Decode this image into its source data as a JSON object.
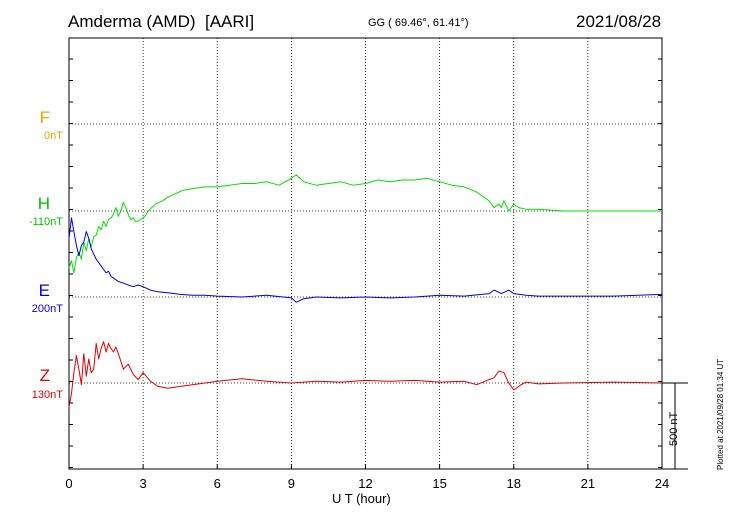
{
  "header": {
    "station": "Amderma (AMD)",
    "institute": "[AARI]",
    "coords": "GG ( 69.46°,  61.41°)",
    "date": "2021/08/28"
  },
  "footer": {
    "plotted": "Plotted at 2021/09/28 01:34 UT",
    "scale_label": "500 nT"
  },
  "chart_data": {
    "type": "line",
    "xlabel": "U T (hour)",
    "xlim": [
      0,
      24
    ],
    "xticks": [
      0,
      3,
      6,
      9,
      12,
      15,
      18,
      21,
      24
    ],
    "scale_nT": 500,
    "grid": true,
    "series": [
      {
        "name": "F",
        "baseline_label": "0nT",
        "color": "#f0a000",
        "values": []
      },
      {
        "name": "H",
        "baseline_label": "-110nT",
        "color": "#00e000",
        "x": [
          0,
          0.1,
          0.2,
          0.3,
          0.4,
          0.5,
          0.6,
          0.7,
          0.8,
          0.9,
          1.0,
          1.1,
          1.2,
          1.3,
          1.4,
          1.5,
          1.6,
          1.7,
          1.8,
          1.9,
          2.0,
          2.1,
          2.2,
          2.3,
          2.4,
          2.5,
          2.6,
          2.7,
          2.8,
          2.9,
          3.0,
          3.1,
          3.2,
          3.5,
          3.8,
          4.0,
          4.3,
          4.6,
          5.0,
          5.5,
          6.0,
          6.5,
          7.0,
          7.5,
          8.0,
          8.5,
          9.0,
          9.2,
          9.5,
          10.0,
          10.5,
          11.0,
          11.5,
          12.0,
          12.5,
          13.0,
          13.5,
          14.0,
          14.5,
          15.0,
          15.5,
          16.0,
          16.5,
          17.0,
          17.2,
          17.4,
          17.5,
          17.6,
          17.8,
          18.0,
          18.2,
          18.5,
          19.0,
          19.5,
          20.0,
          21.0,
          22.0,
          23.0,
          24.0
        ],
        "y": [
          -330,
          -290,
          -360,
          -270,
          -240,
          -280,
          -180,
          -230,
          -160,
          -210,
          -150,
          -140,
          -90,
          -110,
          -60,
          -90,
          -50,
          -40,
          -20,
          20,
          -30,
          0,
          50,
          20,
          -20,
          -50,
          -40,
          -60,
          -60,
          -50,
          -40,
          -25,
          0,
          40,
          60,
          80,
          100,
          120,
          130,
          140,
          140,
          150,
          160,
          160,
          170,
          150,
          190,
          210,
          170,
          150,
          160,
          170,
          150,
          160,
          180,
          170,
          180,
          180,
          190,
          170,
          150,
          140,
          110,
          60,
          20,
          40,
          20,
          60,
          0,
          40,
          20,
          10,
          10,
          5,
          0,
          0,
          0,
          0,
          0
        ]
      },
      {
        "name": "E",
        "baseline_label": "200nT",
        "color": "#0000e0",
        "x": [
          0,
          0.1,
          0.2,
          0.3,
          0.4,
          0.5,
          0.6,
          0.7,
          0.8,
          0.9,
          1.0,
          1.1,
          1.2,
          1.3,
          1.4,
          1.5,
          1.6,
          1.7,
          1.8,
          1.9,
          2.0,
          2.2,
          2.4,
          2.6,
          2.8,
          3.0,
          3.3,
          3.6,
          4.0,
          4.5,
          5.0,
          5.5,
          6.0,
          7.0,
          8.0,
          9.0,
          9.2,
          9.5,
          10.0,
          11.0,
          12.0,
          13.0,
          14.0,
          15.0,
          16.0,
          17.0,
          17.2,
          17.5,
          17.8,
          18.0,
          18.5,
          19.0,
          20.0,
          21.0,
          22.0,
          23.0,
          24.0
        ],
        "y": [
          340,
          460,
          380,
          300,
          240,
          300,
          320,
          380,
          340,
          280,
          250,
          220,
          200,
          180,
          160,
          140,
          150,
          120,
          110,
          100,
          90,
          80,
          70,
          60,
          70,
          60,
          40,
          30,
          25,
          15,
          10,
          10,
          5,
          0,
          10,
          -5,
          -30,
          -10,
          0,
          -5,
          0,
          -5,
          0,
          10,
          5,
          20,
          40,
          20,
          40,
          20,
          10,
          5,
          5,
          5,
          5,
          10,
          15
        ]
      },
      {
        "name": "Z",
        "baseline_label": "130nT",
        "color": "#e00000",
        "x": [
          0,
          0.1,
          0.2,
          0.3,
          0.4,
          0.5,
          0.6,
          0.7,
          0.8,
          0.9,
          1.0,
          1.1,
          1.2,
          1.3,
          1.4,
          1.5,
          1.6,
          1.7,
          1.8,
          1.9,
          2.0,
          2.2,
          2.4,
          2.6,
          2.8,
          3.0,
          3.3,
          3.6,
          4.0,
          4.5,
          5.0,
          5.5,
          6.0,
          7.0,
          8.0,
          9.0,
          10.0,
          11.0,
          12.0,
          13.0,
          14.0,
          15.0,
          16.0,
          16.5,
          17.0,
          17.2,
          17.4,
          17.6,
          17.8,
          18.0,
          18.3,
          18.5,
          19.0,
          20.0,
          22.0,
          24.0
        ],
        "y": [
          -140,
          -60,
          60,
          160,
          80,
          -10,
          170,
          40,
          140,
          60,
          80,
          230,
          140,
          200,
          240,
          180,
          230,
          200,
          180,
          210,
          170,
          80,
          110,
          50,
          20,
          60,
          10,
          -20,
          -30,
          -20,
          -10,
          0,
          10,
          25,
          10,
          0,
          10,
          5,
          15,
          10,
          15,
          5,
          10,
          -10,
          20,
          30,
          70,
          60,
          0,
          -40,
          -10,
          5,
          -5,
          0,
          5,
          0
        ]
      }
    ]
  }
}
